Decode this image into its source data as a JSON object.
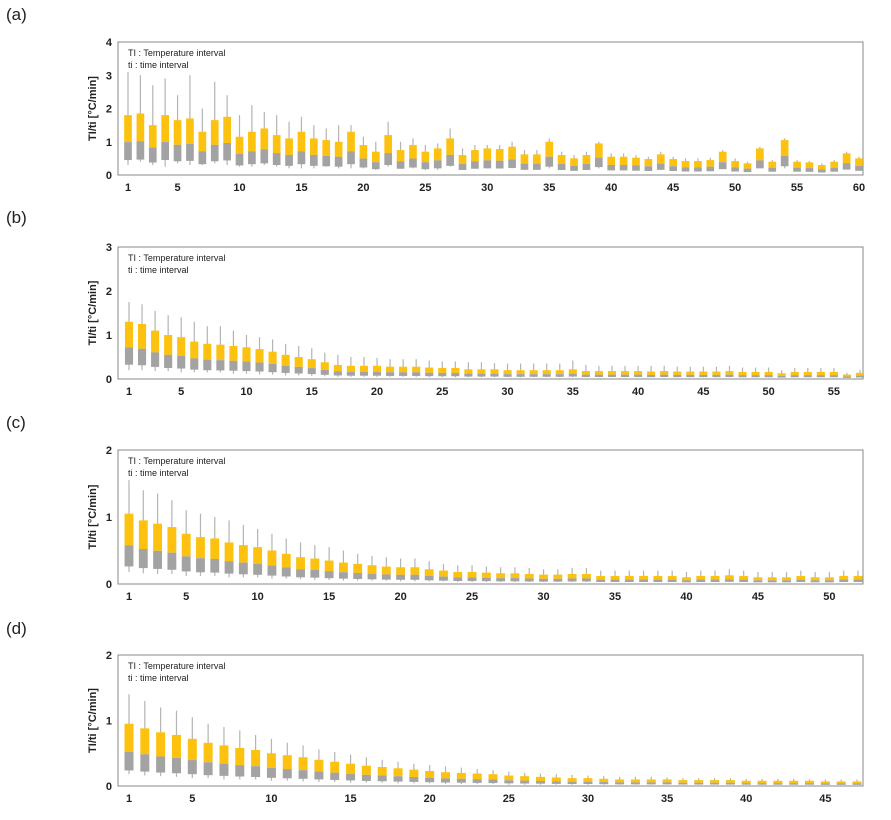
{
  "colors": {
    "upper": "#fcc20f",
    "lower": "#a3a3a3",
    "whisker": "#b4b4b4",
    "frame": "#888888"
  },
  "chart_data": [
    {
      "panel": "(a)",
      "type": "box",
      "ylabel": "TI/ti [°C/min]",
      "legend": [
        "TI : Temperature interval",
        "ti : time interval"
      ],
      "ylim": [
        0,
        4
      ],
      "yticks": [
        "0",
        "1",
        "2",
        "3",
        "4"
      ],
      "xlim": [
        1,
        60
      ],
      "xticks": [
        1,
        5,
        10,
        15,
        20,
        25,
        30,
        35,
        40,
        45,
        50,
        55,
        60
      ],
      "n": 60,
      "start": [
        1.8,
        1.85,
        1.5,
        1.8,
        1.65,
        1.7,
        1.3,
        1.65,
        1.75,
        1.15,
        1.3,
        1.4,
        1.2,
        1.1,
        1.3,
        1.1,
        1.05,
        1.0,
        1.3,
        0.9,
        0.7,
        1.2,
        0.75,
        0.9,
        0.7,
        0.8,
        1.1,
        0.6,
        0.75,
        0.8,
        0.78,
        0.85,
        0.62,
        0.62,
        1.0,
        0.6,
        0.5,
        0.6,
        0.95,
        0.55,
        0.55,
        0.52,
        0.48,
        0.62,
        0.48,
        0.42,
        0.42,
        0.45,
        0.7,
        0.42,
        0.35,
        0.8,
        0.4,
        1.05,
        0.4,
        0.38,
        0.3,
        0.4,
        0.65,
        0.5
      ],
      "maxv": [
        3.1,
        3.0,
        2.7,
        2.9,
        2.4,
        3.0,
        2.0,
        2.8,
        2.4,
        1.8,
        2.1,
        1.9,
        1.8,
        1.6,
        1.75,
        1.5,
        1.4,
        1.5,
        1.5,
        1.15,
        1.0,
        1.6,
        1.0,
        1.1,
        0.9,
        0.95,
        1.4,
        0.8,
        0.9,
        0.9,
        0.9,
        1.0,
        0.75,
        0.75,
        1.1,
        0.7,
        0.6,
        0.7,
        1.0,
        0.65,
        0.65,
        0.6,
        0.55,
        0.7,
        0.55,
        0.5,
        0.5,
        0.52,
        0.75,
        0.5,
        0.4,
        0.85,
        0.45,
        1.1,
        0.45,
        0.42,
        0.35,
        0.45,
        0.7,
        0.55
      ],
      "minv": [
        0.3,
        0.4,
        0.3,
        0.25,
        0.35,
        0.3,
        0.3,
        0.35,
        0.3,
        0.25,
        0.25,
        0.3,
        0.25,
        0.2,
        0.2,
        0.2,
        0.25,
        0.2,
        0.2,
        0.2,
        0.15,
        0.25,
        0.2,
        0.2,
        0.15,
        0.15,
        0.25,
        0.15,
        0.2,
        0.2,
        0.2,
        0.2,
        0.2,
        0.15,
        0.2,
        0.15,
        0.15,
        0.15,
        0.2,
        0.15,
        0.15,
        0.15,
        0.15,
        0.15,
        0.15,
        0.15,
        0.15,
        0.15,
        0.2,
        0.15,
        0.15,
        0.2,
        0.15,
        0.2,
        0.15,
        0.15,
        0.15,
        0.15,
        0.2,
        0.15
      ]
    },
    {
      "panel": "(b)",
      "type": "box",
      "ylabel": "TI/ti [°C/min]",
      "legend": [
        "TI : Temperature interval",
        "ti : time interval"
      ],
      "ylim": [
        0,
        3
      ],
      "yticks": [
        "0",
        "1",
        "2",
        "3"
      ],
      "xlim": [
        1,
        57
      ],
      "xticks": [
        1,
        5,
        10,
        15,
        20,
        25,
        30,
        35,
        40,
        45,
        50,
        55
      ],
      "n": 57,
      "start": [
        1.3,
        1.25,
        1.1,
        1.0,
        0.95,
        0.85,
        0.8,
        0.78,
        0.75,
        0.72,
        0.68,
        0.62,
        0.55,
        0.5,
        0.45,
        0.38,
        0.32,
        0.3,
        0.3,
        0.3,
        0.28,
        0.28,
        0.28,
        0.26,
        0.25,
        0.25,
        0.22,
        0.22,
        0.22,
        0.2,
        0.2,
        0.2,
        0.2,
        0.2,
        0.22,
        0.18,
        0.18,
        0.18,
        0.18,
        0.18,
        0.17,
        0.18,
        0.17,
        0.17,
        0.17,
        0.17,
        0.18,
        0.16,
        0.16,
        0.16,
        0.13,
        0.16,
        0.16,
        0.16,
        0.16,
        0.1,
        0.14
      ],
      "maxv": [
        1.75,
        1.7,
        1.55,
        1.45,
        1.4,
        1.3,
        1.2,
        1.2,
        1.1,
        1.0,
        0.95,
        0.9,
        0.8,
        0.75,
        0.7,
        0.6,
        0.55,
        0.5,
        0.5,
        0.48,
        0.45,
        0.45,
        0.45,
        0.42,
        0.4,
        0.4,
        0.38,
        0.38,
        0.36,
        0.35,
        0.35,
        0.35,
        0.35,
        0.35,
        0.42,
        0.32,
        0.3,
        0.3,
        0.3,
        0.3,
        0.3,
        0.3,
        0.28,
        0.28,
        0.28,
        0.28,
        0.3,
        0.26,
        0.26,
        0.26,
        0.2,
        0.25,
        0.25,
        0.25,
        0.25,
        0.14,
        0.2
      ],
      "minv": [
        0.2,
        0.2,
        0.18,
        0.18,
        0.15,
        0.15,
        0.15,
        0.15,
        0.12,
        0.12,
        0.1,
        0.1,
        0.08,
        0.08,
        0.07,
        0.06,
        0.05,
        0.05,
        0.05,
        0.05,
        0.05,
        0.05,
        0.05,
        0.04,
        0.04,
        0.04,
        0.04,
        0.04,
        0.04,
        0.04,
        0.04,
        0.04,
        0.04,
        0.04,
        0.04,
        0.04,
        0.04,
        0.04,
        0.04,
        0.04,
        0.04,
        0.04,
        0.04,
        0.04,
        0.04,
        0.04,
        0.04,
        0.04,
        0.04,
        0.04,
        0.04,
        0.04,
        0.04,
        0.04,
        0.04,
        0.04,
        0.04
      ]
    },
    {
      "panel": "(c)",
      "type": "box",
      "ylabel": "TI/ti [°C/min]",
      "legend": [
        "TI : Temperature interval",
        "ti : time interval"
      ],
      "ylim": [
        0,
        2
      ],
      "yticks": [
        "0",
        "1",
        "2"
      ],
      "xlim": [
        1,
        52
      ],
      "xticks": [
        1,
        5,
        10,
        15,
        20,
        25,
        30,
        35,
        40,
        45,
        50
      ],
      "n": 52,
      "start": [
        1.05,
        0.95,
        0.9,
        0.85,
        0.75,
        0.7,
        0.68,
        0.62,
        0.58,
        0.55,
        0.5,
        0.45,
        0.4,
        0.38,
        0.35,
        0.32,
        0.3,
        0.28,
        0.26,
        0.25,
        0.25,
        0.22,
        0.2,
        0.18,
        0.18,
        0.17,
        0.16,
        0.16,
        0.15,
        0.14,
        0.14,
        0.15,
        0.15,
        0.12,
        0.12,
        0.12,
        0.12,
        0.12,
        0.12,
        0.1,
        0.12,
        0.12,
        0.13,
        0.12,
        0.1,
        0.1,
        0.1,
        0.12,
        0.1,
        0.1,
        0.12,
        0.12
      ],
      "maxv": [
        1.55,
        1.4,
        1.35,
        1.25,
        1.1,
        1.05,
        1.0,
        0.95,
        0.88,
        0.82,
        0.75,
        0.68,
        0.62,
        0.58,
        0.55,
        0.5,
        0.45,
        0.42,
        0.4,
        0.38,
        0.38,
        0.34,
        0.3,
        0.28,
        0.28,
        0.26,
        0.25,
        0.25,
        0.24,
        0.22,
        0.22,
        0.24,
        0.24,
        0.2,
        0.2,
        0.2,
        0.2,
        0.2,
        0.2,
        0.18,
        0.2,
        0.2,
        0.22,
        0.2,
        0.18,
        0.18,
        0.18,
        0.2,
        0.18,
        0.18,
        0.2,
        0.2
      ],
      "minv": [
        0.18,
        0.16,
        0.15,
        0.15,
        0.12,
        0.12,
        0.12,
        0.1,
        0.1,
        0.1,
        0.08,
        0.08,
        0.07,
        0.06,
        0.06,
        0.05,
        0.05,
        0.05,
        0.05,
        0.04,
        0.04,
        0.04,
        0.04,
        0.03,
        0.03,
        0.03,
        0.03,
        0.03,
        0.03,
        0.03,
        0.03,
        0.03,
        0.03,
        0.03,
        0.03,
        0.03,
        0.03,
        0.03,
        0.03,
        0.03,
        0.03,
        0.03,
        0.03,
        0.03,
        0.03,
        0.03,
        0.03,
        0.03,
        0.03,
        0.03,
        0.03,
        0.03
      ]
    },
    {
      "panel": "(d)",
      "type": "box",
      "ylabel": "TI/ti [°C/min]",
      "legend": [
        "TI : Temperature interval",
        "ti : time interval"
      ],
      "ylim": [
        0,
        2
      ],
      "yticks": [
        "0",
        "1",
        "2"
      ],
      "xlim": [
        1,
        47
      ],
      "xticks": [
        1,
        5,
        10,
        15,
        20,
        25,
        30,
        35,
        40,
        45
      ],
      "n": 47,
      "start": [
        0.95,
        0.88,
        0.82,
        0.78,
        0.72,
        0.66,
        0.62,
        0.58,
        0.55,
        0.5,
        0.47,
        0.44,
        0.4,
        0.37,
        0.34,
        0.31,
        0.29,
        0.27,
        0.25,
        0.23,
        0.21,
        0.2,
        0.19,
        0.18,
        0.16,
        0.15,
        0.14,
        0.13,
        0.12,
        0.12,
        0.11,
        0.1,
        0.1,
        0.1,
        0.1,
        0.09,
        0.09,
        0.09,
        0.09,
        0.08,
        0.08,
        0.08,
        0.08,
        0.08,
        0.07,
        0.07,
        0.07
      ],
      "maxv": [
        1.4,
        1.3,
        1.2,
        1.15,
        1.05,
        0.95,
        0.9,
        0.85,
        0.78,
        0.72,
        0.66,
        0.62,
        0.56,
        0.52,
        0.48,
        0.44,
        0.4,
        0.37,
        0.34,
        0.32,
        0.3,
        0.28,
        0.26,
        0.24,
        0.22,
        0.2,
        0.19,
        0.18,
        0.17,
        0.16,
        0.15,
        0.14,
        0.14,
        0.14,
        0.13,
        0.12,
        0.12,
        0.12,
        0.12,
        0.11,
        0.11,
        0.11,
        0.11,
        0.1,
        0.1,
        0.1,
        0.1
      ],
      "minv": [
        0.18,
        0.16,
        0.15,
        0.14,
        0.12,
        0.12,
        0.1,
        0.1,
        0.1,
        0.08,
        0.08,
        0.07,
        0.06,
        0.06,
        0.05,
        0.05,
        0.05,
        0.04,
        0.04,
        0.04,
        0.03,
        0.03,
        0.03,
        0.03,
        0.02,
        0.02,
        0.02,
        0.02,
        0.02,
        0.02,
        0.02,
        0.02,
        0.02,
        0.02,
        0.02,
        0.02,
        0.02,
        0.02,
        0.02,
        0.02,
        0.02,
        0.02,
        0.02,
        0.02,
        0.02,
        0.02,
        0.02
      ]
    }
  ]
}
